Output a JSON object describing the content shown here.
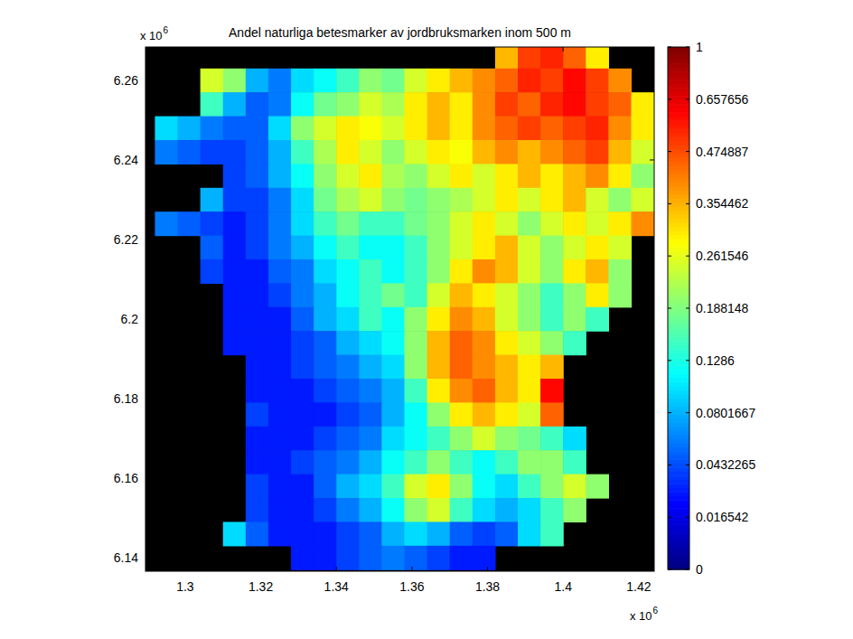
{
  "chart_data": {
    "type": "heatmap",
    "title": "Andel naturliga betesmarker av jordbruksmarken inom 500 m",
    "annotations": [
      {
        "text": "x 10",
        "superscript": "6",
        "axis": "y"
      },
      {
        "text": "x 10",
        "superscript": "6",
        "axis": "x"
      }
    ],
    "xlim": [
      1.2895,
      1.4241
    ],
    "ylim": [
      6.1366,
      6.2684
    ],
    "xticks": [
      1.3,
      1.32,
      1.34,
      1.36,
      1.38,
      1.4,
      1.42
    ],
    "yticks": [
      6.14,
      6.16,
      6.18,
      6.2,
      6.22,
      6.24,
      6.26
    ],
    "grid": false,
    "x": [
      1.295,
      1.301,
      1.307,
      1.313,
      1.319,
      1.325,
      1.331,
      1.337,
      1.343,
      1.349,
      1.355,
      1.361,
      1.367,
      1.373,
      1.379,
      1.385,
      1.391,
      1.397,
      1.403,
      1.409,
      1.415,
      1.421
    ],
    "y": [
      6.266,
      6.26,
      6.254,
      6.248,
      6.242,
      6.236,
      6.23,
      6.224,
      6.218,
      6.212,
      6.206,
      6.2,
      6.194,
      6.188,
      6.182,
      6.176,
      6.17,
      6.164,
      6.158,
      6.152,
      6.146,
      6.14
    ],
    "cells": [
      [
        null,
        null,
        null,
        null,
        null,
        null,
        null,
        null,
        null,
        null,
        null,
        null,
        null,
        null,
        null,
        0.35,
        0.5,
        0.55,
        0.45,
        0.3,
        null,
        null
      ],
      [
        null,
        null,
        0.25,
        0.2,
        0.08,
        0.06,
        0.1,
        0.12,
        0.15,
        0.2,
        0.18,
        0.25,
        0.3,
        0.35,
        0.4,
        0.45,
        0.55,
        0.5,
        0.6,
        0.5,
        0.4,
        null
      ],
      [
        null,
        null,
        0.15,
        0.08,
        0.05,
        0.06,
        0.12,
        0.18,
        0.2,
        0.25,
        0.22,
        0.3,
        0.35,
        0.3,
        0.4,
        0.5,
        0.45,
        0.55,
        0.6,
        0.5,
        0.45,
        0.3
      ],
      [
        0.1,
        0.08,
        0.06,
        0.05,
        0.05,
        0.1,
        0.2,
        0.25,
        0.3,
        0.28,
        0.25,
        0.3,
        0.35,
        0.3,
        0.4,
        0.45,
        0.5,
        0.45,
        0.5,
        0.55,
        0.4,
        0.3
      ],
      [
        0.06,
        0.05,
        0.04,
        0.04,
        0.05,
        0.08,
        0.15,
        0.22,
        0.3,
        0.25,
        0.2,
        0.25,
        0.3,
        0.28,
        0.35,
        0.4,
        0.35,
        0.4,
        0.45,
        0.5,
        0.35,
        0.25
      ],
      [
        null,
        null,
        null,
        0.04,
        0.05,
        0.08,
        0.12,
        0.2,
        0.25,
        0.3,
        0.22,
        0.2,
        0.25,
        0.3,
        0.25,
        0.3,
        0.35,
        0.3,
        0.35,
        0.4,
        0.3,
        0.2
      ],
      [
        null,
        null,
        0.08,
        0.04,
        0.04,
        0.06,
        0.1,
        0.18,
        0.22,
        0.25,
        0.2,
        0.18,
        0.2,
        0.22,
        0.25,
        0.3,
        0.25,
        0.3,
        0.35,
        0.25,
        0.2,
        0.25
      ],
      [
        0.06,
        0.05,
        0.04,
        0.03,
        0.04,
        0.06,
        0.1,
        0.15,
        0.18,
        0.15,
        0.15,
        0.18,
        0.2,
        0.25,
        0.3,
        0.25,
        0.2,
        0.25,
        0.3,
        0.25,
        0.3,
        0.4
      ],
      [
        null,
        null,
        0.05,
        0.03,
        0.04,
        0.06,
        0.08,
        0.12,
        0.15,
        0.12,
        0.12,
        0.15,
        0.2,
        0.25,
        0.3,
        0.35,
        0.25,
        0.2,
        0.25,
        0.3,
        0.25,
        null
      ],
      [
        null,
        null,
        0.04,
        0.03,
        0.03,
        0.05,
        0.06,
        0.1,
        0.12,
        0.15,
        0.12,
        0.15,
        0.2,
        0.3,
        0.4,
        0.35,
        0.25,
        0.2,
        0.3,
        0.35,
        0.2,
        null
      ],
      [
        null,
        null,
        null,
        0.03,
        0.03,
        0.04,
        0.06,
        0.08,
        0.12,
        0.15,
        0.18,
        0.15,
        0.25,
        0.35,
        0.3,
        0.25,
        0.2,
        0.15,
        0.2,
        0.3,
        0.2,
        null
      ],
      [
        null,
        null,
        null,
        0.03,
        0.03,
        0.03,
        0.05,
        0.08,
        0.1,
        0.15,
        0.12,
        0.2,
        0.3,
        0.4,
        0.35,
        0.25,
        0.2,
        0.15,
        0.2,
        0.15,
        null,
        null
      ],
      [
        null,
        null,
        null,
        0.03,
        0.03,
        0.03,
        0.04,
        0.05,
        0.08,
        0.1,
        0.12,
        0.2,
        0.35,
        0.45,
        0.4,
        0.3,
        0.25,
        0.2,
        0.15,
        null,
        null,
        null
      ],
      [
        null,
        null,
        null,
        null,
        0.03,
        0.03,
        0.04,
        0.05,
        0.06,
        0.08,
        0.1,
        0.2,
        0.35,
        0.45,
        0.4,
        0.35,
        0.3,
        0.35,
        null,
        null,
        null,
        null
      ],
      [
        null,
        null,
        null,
        null,
        0.03,
        0.03,
        0.03,
        0.04,
        0.05,
        0.06,
        0.08,
        0.15,
        0.3,
        0.4,
        0.45,
        0.35,
        0.3,
        0.6,
        null,
        null,
        null,
        null
      ],
      [
        null,
        null,
        null,
        null,
        0.04,
        0.03,
        0.03,
        0.03,
        0.04,
        0.05,
        0.08,
        0.12,
        0.2,
        0.3,
        0.35,
        0.3,
        0.25,
        0.45,
        null,
        null,
        null,
        null
      ],
      [
        null,
        null,
        null,
        null,
        0.03,
        0.03,
        0.03,
        0.04,
        0.05,
        0.06,
        0.1,
        0.12,
        0.15,
        0.2,
        0.25,
        0.2,
        0.18,
        0.15,
        0.1,
        null,
        null,
        null
      ],
      [
        null,
        null,
        null,
        null,
        0.03,
        0.03,
        0.04,
        0.05,
        0.06,
        0.08,
        0.12,
        0.15,
        0.2,
        0.15,
        0.12,
        0.15,
        0.2,
        0.2,
        0.15,
        null,
        null,
        null
      ],
      [
        null,
        null,
        null,
        null,
        0.04,
        0.03,
        0.03,
        0.05,
        0.08,
        0.1,
        0.15,
        0.25,
        0.3,
        0.2,
        0.12,
        0.1,
        0.15,
        0.2,
        0.25,
        0.2,
        null,
        null
      ],
      [
        null,
        null,
        null,
        null,
        0.04,
        0.03,
        0.03,
        0.04,
        0.06,
        0.08,
        0.12,
        0.2,
        0.25,
        0.15,
        0.1,
        0.08,
        0.1,
        0.15,
        0.2,
        null,
        null,
        null
      ],
      [
        null,
        null,
        null,
        0.1,
        0.05,
        0.03,
        0.03,
        0.03,
        0.04,
        0.05,
        0.08,
        0.1,
        0.08,
        0.05,
        0.04,
        0.05,
        0.1,
        0.15,
        null,
        null,
        null,
        null
      ],
      [
        null,
        null,
        null,
        null,
        null,
        null,
        0.03,
        0.03,
        0.04,
        0.05,
        0.06,
        0.05,
        0.04,
        0.03,
        0.03,
        null,
        null,
        null,
        null,
        null,
        null,
        null
      ]
    ],
    "colorbar": {
      "range": [
        0,
        1
      ],
      "ticks": [
        0,
        0.016542,
        0.0432265,
        0.0801667,
        0.1286,
        0.188148,
        0.261546,
        0.354462,
        0.474887,
        0.657656,
        1
      ]
    }
  }
}
